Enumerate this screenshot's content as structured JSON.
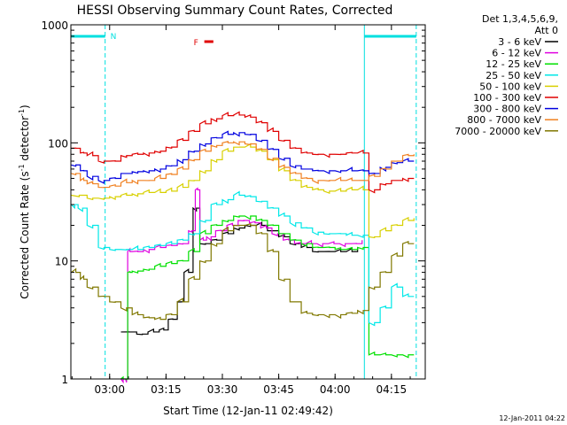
{
  "chart_data": {
    "type": "line",
    "title": "HESSI Observing Summary Count Rates, Corrected",
    "xlabel": "Start Time (12-Jan-11 02:49:42)",
    "ylabel": "Corrected Count Rate (s",
    "ylabel_exp1": "-1",
    "ylabel_mid": " detector",
    "ylabel_exp2": "-1",
    "ylabel_end": ")",
    "yscale": "log",
    "ylim": [
      1,
      1000
    ],
    "xlim": [
      2.828,
      4.4
    ],
    "x_unit": "hours UT",
    "x_ticks": [
      {
        "value": 3.0,
        "label": "03:00"
      },
      {
        "value": 3.25,
        "label": "03:15"
      },
      {
        "value": 3.5,
        "label": "03:30"
      },
      {
        "value": 3.75,
        "label": "03:45"
      },
      {
        "value": 4.0,
        "label": "04:00"
      },
      {
        "value": 4.25,
        "label": "04:15"
      }
    ],
    "y_ticks": [
      {
        "value": 1,
        "label": "1"
      },
      {
        "value": 10,
        "label": "10"
      },
      {
        "value": 100,
        "label": "100"
      },
      {
        "value": 1000,
        "label": "1000"
      }
    ],
    "grid": false,
    "legend_title_1": "Det 1,3,4,5,6,9,",
    "legend_title_2": "Att 0",
    "legend_position": "right",
    "timestamp": "12-Jan-2011 04:22",
    "annotations": {
      "night_label": "N",
      "flare_label": "F",
      "night_color": "#00e0e0",
      "flare_color": "#e00000",
      "night_bars": [
        [
          2.828,
          2.98
        ],
        [
          4.13,
          4.36
        ]
      ],
      "night_edges_solid": [
        2.828,
        4.13
      ],
      "night_edges_dashed": [
        2.98,
        4.36
      ],
      "flare_bar": [
        3.42,
        3.46
      ]
    },
    "series": [
      {
        "name": "3 - 6 keV",
        "color": "#000000",
        "x": [
          3.05,
          3.12,
          3.17,
          3.22,
          3.26,
          3.3,
          3.33,
          3.37,
          3.4,
          3.45,
          3.5,
          3.55,
          3.6,
          3.65,
          3.7,
          3.75,
          3.8,
          3.85,
          3.9,
          3.95,
          4.0,
          4.05,
          4.1
        ],
        "y": [
          2.5,
          2.4,
          2.5,
          2.6,
          3.2,
          4.5,
          8,
          28,
          14,
          15,
          17,
          19,
          20,
          20,
          18,
          16,
          14,
          13,
          12,
          12,
          12,
          12,
          13
        ]
      },
      {
        "name": "6 - 12 keV",
        "color": "#e000e0",
        "x": [
          3.05,
          3.07,
          3.08,
          3.1,
          3.15,
          3.2,
          3.25,
          3.3,
          3.35,
          3.38,
          3.4,
          3.43,
          3.47,
          3.52,
          3.57,
          3.62,
          3.67,
          3.72,
          3.77,
          3.82,
          3.87,
          3.92,
          3.97,
          4.02,
          4.07,
          4.12
        ],
        "y": [
          1.0,
          1.0,
          12,
          12,
          12.5,
          13,
          13.5,
          14,
          18,
          40,
          15,
          16,
          18,
          20,
          22,
          21,
          19,
          17,
          15,
          14,
          14,
          14,
          14,
          14,
          14,
          15
        ]
      },
      {
        "name": "12 - 25 keV",
        "color": "#00e000",
        "x": [
          3.05,
          3.07,
          3.08,
          3.1,
          3.15,
          3.2,
          3.25,
          3.3,
          3.35,
          3.4,
          3.45,
          3.5,
          3.55,
          3.6,
          3.65,
          3.7,
          3.75,
          3.8,
          3.85,
          3.9,
          3.95,
          4.0,
          4.05,
          4.1,
          4.15,
          4.2,
          4.25,
          4.3,
          4.35
        ],
        "y": [
          1.0,
          1.0,
          8,
          8.2,
          8.5,
          9,
          9.5,
          10,
          12,
          17,
          20,
          22,
          24,
          24,
          22,
          20,
          17,
          15,
          14,
          13,
          13,
          12.5,
          12.5,
          13,
          1.6,
          1.6,
          1.6,
          1.6,
          1.6
        ]
      },
      {
        "name": "25 - 50 keV",
        "color": "#00e8e8",
        "x": [
          2.83,
          2.86,
          2.9,
          2.95,
          3.0,
          3.05,
          3.1,
          3.15,
          3.2,
          3.25,
          3.3,
          3.35,
          3.4,
          3.45,
          3.5,
          3.55,
          3.6,
          3.65,
          3.7,
          3.75,
          3.8,
          3.85,
          3.9,
          3.95,
          4.0,
          4.05,
          4.1,
          4.15,
          4.2,
          4.25,
          4.3,
          4.35
        ],
        "y": [
          30,
          28,
          20,
          13,
          12.5,
          12.5,
          12.5,
          13,
          13.5,
          14,
          15,
          17,
          22,
          30,
          33,
          36,
          35,
          32,
          28,
          24,
          21,
          19,
          17.5,
          17,
          17,
          16.5,
          16.5,
          3,
          4,
          6,
          5,
          5
        ]
      },
      {
        "name": "50 - 100 keV",
        "color": "#d8d000",
        "x": [
          2.83,
          2.9,
          2.95,
          3.0,
          3.05,
          3.1,
          3.15,
          3.2,
          3.25,
          3.3,
          3.35,
          3.4,
          3.45,
          3.5,
          3.55,
          3.6,
          3.65,
          3.7,
          3.75,
          3.8,
          3.85,
          3.9,
          3.95,
          4.0,
          4.05,
          4.1,
          4.15,
          4.2,
          4.25,
          4.3,
          4.35
        ],
        "y": [
          36,
          34,
          34,
          35,
          36,
          37,
          38,
          38,
          39,
          42,
          48,
          58,
          72,
          85,
          92,
          92,
          85,
          72,
          58,
          48,
          42,
          40,
          39,
          39,
          40,
          40,
          16,
          18,
          20,
          22,
          23
        ]
      },
      {
        "name": "100 - 300 keV",
        "color": "#e00000",
        "x": [
          2.83,
          2.87,
          2.9,
          2.95,
          3.0,
          3.05,
          3.1,
          3.15,
          3.2,
          3.25,
          3.3,
          3.35,
          3.4,
          3.45,
          3.5,
          3.55,
          3.6,
          3.65,
          3.7,
          3.75,
          3.8,
          3.85,
          3.9,
          3.95,
          4.0,
          4.05,
          4.1,
          4.15,
          4.2,
          4.25,
          4.3,
          4.35
        ],
        "y": [
          90,
          82,
          78,
          70,
          70,
          78,
          80,
          82,
          85,
          92,
          105,
          125,
          145,
          160,
          170,
          172,
          165,
          148,
          125,
          105,
          90,
          82,
          80,
          80,
          80,
          82,
          82,
          40,
          45,
          48,
          50,
          50
        ]
      },
      {
        "name": "300 - 800 keV",
        "color": "#0000e0",
        "x": [
          2.83,
          2.87,
          2.9,
          2.95,
          3.0,
          3.05,
          3.1,
          3.15,
          3.2,
          3.25,
          3.3,
          3.35,
          3.4,
          3.45,
          3.5,
          3.55,
          3.6,
          3.65,
          3.7,
          3.75,
          3.8,
          3.85,
          3.9,
          3.95,
          4.0,
          4.05,
          4.1,
          4.15,
          4.2,
          4.25,
          4.3,
          4.35
        ],
        "y": [
          65,
          58,
          52,
          48,
          50,
          55,
          57,
          58,
          60,
          64,
          72,
          85,
          98,
          110,
          118,
          122,
          118,
          105,
          88,
          74,
          64,
          60,
          58,
          58,
          58,
          58,
          58,
          55,
          62,
          68,
          70,
          70
        ]
      },
      {
        "name": "800 - 7000 keV",
        "color": "#f08020",
        "x": [
          2.83,
          2.87,
          2.9,
          2.95,
          3.0,
          3.05,
          3.1,
          3.15,
          3.2,
          3.25,
          3.3,
          3.35,
          3.4,
          3.45,
          3.5,
          3.55,
          3.6,
          3.65,
          3.7,
          3.75,
          3.8,
          3.85,
          3.9,
          3.95,
          4.0,
          4.05,
          4.1,
          4.15,
          4.2,
          4.25,
          4.3,
          4.35
        ],
        "y": [
          55,
          48,
          45,
          42,
          43,
          46,
          48,
          48,
          50,
          54,
          60,
          72,
          85,
          95,
          100,
          102,
          98,
          88,
          74,
          62,
          55,
          50,
          48,
          48,
          48,
          48,
          48,
          52,
          60,
          70,
          78,
          80
        ]
      },
      {
        "name": "7000 - 20000 keV",
        "color": "#807800",
        "x": [
          2.83,
          2.87,
          2.9,
          2.95,
          3.0,
          3.05,
          3.1,
          3.15,
          3.2,
          3.25,
          3.3,
          3.35,
          3.4,
          3.45,
          3.5,
          3.55,
          3.6,
          3.65,
          3.7,
          3.75,
          3.8,
          3.85,
          3.9,
          3.95,
          4.0,
          4.05,
          4.1,
          4.15,
          4.2,
          4.25,
          4.3,
          4.35
        ],
        "y": [
          8,
          7,
          6,
          5,
          4.5,
          4,
          3.5,
          3.3,
          3.2,
          3.5,
          4.5,
          7,
          10,
          14,
          18,
          20,
          20,
          17,
          12,
          7,
          4.5,
          3.6,
          3.5,
          3.5,
          3.5,
          3.6,
          3.8,
          6,
          8,
          11,
          14,
          14
        ]
      }
    ]
  }
}
